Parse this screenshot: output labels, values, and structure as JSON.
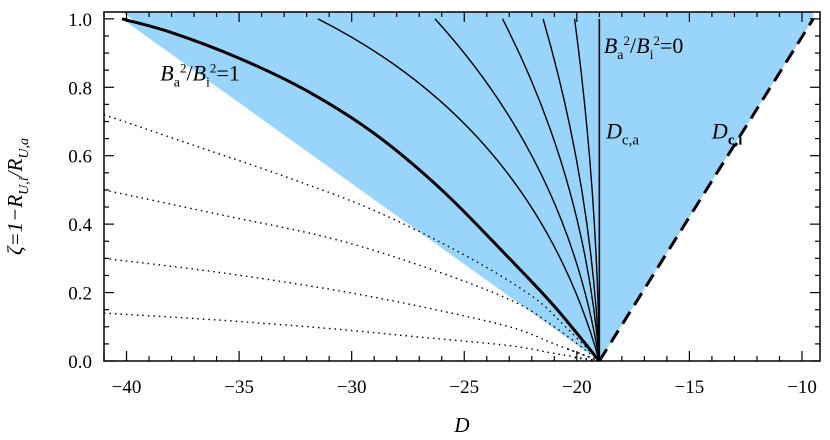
{
  "chart_data": {
    "type": "line",
    "xlabel": "D",
    "ylabel": "ζ=1−R_{U,i}/R_{U,a}",
    "xlim": [
      -41,
      -9.2
    ],
    "ylim": [
      0,
      1.02
    ],
    "x_ticks": [
      -40,
      -35,
      -30,
      -25,
      -20,
      -15,
      -10
    ],
    "y_ticks": [
      0.0,
      0.2,
      0.4,
      0.6,
      0.8,
      1.0
    ],
    "x_tick_labels": [
      "−40",
      "−35",
      "−30",
      "−25",
      "−20",
      "−15",
      "−10"
    ],
    "y_tick_labels": [
      "0.0",
      "0.2",
      "0.4",
      "0.6",
      "0.8",
      "1.0"
    ],
    "fill_color": "#99d4fa",
    "vertex": {
      "D": -19,
      "zeta": 0
    },
    "series": [
      {
        "name": "B_a²/B_i²=1",
        "style": "thick-solid",
        "x": [
          -40.2,
          -38,
          -35,
          -32,
          -29,
          -26,
          -23,
          -21,
          -19
        ],
        "y": [
          1.0,
          0.96,
          0.885,
          0.79,
          0.665,
          0.5,
          0.3,
          0.16,
          0.0
        ]
      },
      {
        "style": "thin-solid",
        "x": [
          -31.5,
          -19
        ],
        "y": [
          1.0,
          0.0
        ],
        "curvature": 0.22
      },
      {
        "style": "thin-solid",
        "x": [
          -26.3,
          -19
        ],
        "y": [
          1.0,
          0.0
        ],
        "curvature": 0.15
      },
      {
        "style": "thin-solid",
        "x": [
          -23.3,
          -19
        ],
        "y": [
          1.0,
          0.0
        ],
        "curvature": 0.1
      },
      {
        "style": "thin-solid",
        "x": [
          -21.5,
          -19
        ],
        "y": [
          1.0,
          0.0
        ],
        "curvature": 0.06
      },
      {
        "style": "thin-solid",
        "x": [
          -20.1,
          -19
        ],
        "y": [
          1.0,
          0.0
        ],
        "curvature": 0.03
      },
      {
        "name": "B_a²/B_i²=0",
        "style": "thin-solid",
        "x": [
          -19,
          -19
        ],
        "y": [
          1.0,
          0.0
        ]
      },
      {
        "name": "D_c,i",
        "style": "thick-dashed",
        "x": [
          -19,
          -9.5
        ],
        "y": [
          0.0,
          1.0
        ]
      },
      {
        "style": "dotted",
        "x": [
          -41,
          -37,
          -33,
          -29,
          -25,
          -22,
          -20.5,
          -19
        ],
        "y": [
          0.72,
          0.63,
          0.54,
          0.44,
          0.31,
          0.19,
          0.1,
          0.0
        ]
      },
      {
        "style": "dotted",
        "x": [
          -41,
          -36,
          -31,
          -27,
          -23,
          -21,
          -19
        ],
        "y": [
          0.5,
          0.43,
          0.36,
          0.28,
          0.18,
          0.1,
          0.0
        ]
      },
      {
        "style": "dotted",
        "x": [
          -41,
          -36,
          -31,
          -27,
          -23,
          -21,
          -19
        ],
        "y": [
          0.3,
          0.26,
          0.21,
          0.16,
          0.1,
          0.05,
          0.0
        ]
      },
      {
        "style": "dotted",
        "x": [
          -41,
          -36,
          -31,
          -27,
          -23,
          -21,
          -19
        ],
        "y": [
          0.14,
          0.12,
          0.095,
          0.07,
          0.045,
          0.022,
          0.0
        ]
      },
      {
        "style": "dotted",
        "x": [
          -20.4,
          -19.7,
          -19
        ],
        "y": [
          0.035,
          0.018,
          0.0
        ]
      },
      {
        "style": "dotted",
        "x": [
          -20.1,
          -19.6,
          -19
        ],
        "y": [
          0.01,
          0.005,
          0.0
        ]
      }
    ],
    "annotations": [
      {
        "text": "B_a²/B_i²=1",
        "x": -38.5,
        "y": 0.82
      },
      {
        "text": "B_a²/B_i²=0",
        "x": -18.8,
        "y": 0.9
      },
      {
        "text": "D_c,a",
        "x": -18.7,
        "y": 0.65
      },
      {
        "text": "D_c,i",
        "x": -14.0,
        "y": 0.65
      }
    ]
  }
}
